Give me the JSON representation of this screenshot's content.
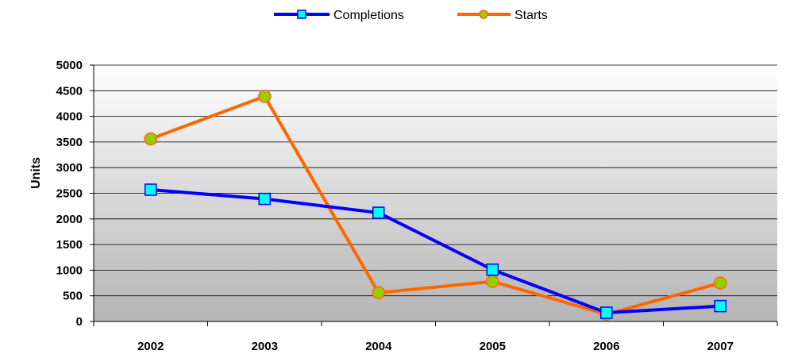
{
  "chart_data": {
    "type": "line",
    "categories": [
      "2002",
      "2003",
      "2004",
      "2005",
      "2006",
      "2007"
    ],
    "series": [
      {
        "name": "Completions",
        "values": [
          2570,
          2390,
          2120,
          1010,
          170,
          300
        ],
        "color": "#0000ff",
        "marker": "square",
        "marker_fill": "#00ffff"
      },
      {
        "name": "Starts",
        "values": [
          3560,
          4390,
          560,
          780,
          140,
          750
        ],
        "color": "#ff6600",
        "marker": "circle",
        "marker_fill": "#99cc00"
      }
    ],
    "ylabel": "Units",
    "ylim": [
      0,
      5000
    ],
    "yticks": [
      "0",
      "500",
      "1000",
      "1500",
      "2000",
      "2500",
      "3000",
      "3500",
      "4000",
      "4500",
      "5000"
    ],
    "grid": true,
    "legend_position": "top-center"
  }
}
